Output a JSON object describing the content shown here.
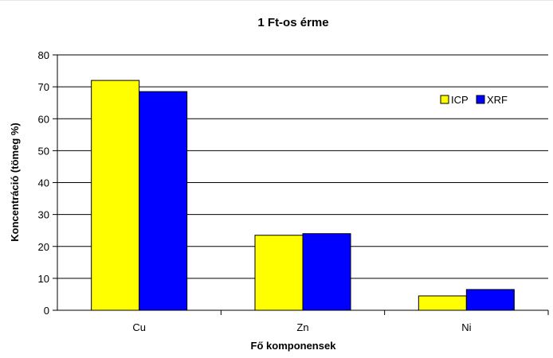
{
  "chart_data": {
    "type": "bar",
    "title": "1 Ft-os érme",
    "xlabel": "Fő komponensek",
    "ylabel": "Koncentráció (tömeg %)",
    "categories": [
      "Cu",
      "Zn",
      "Ni"
    ],
    "series": [
      {
        "name": "ICP",
        "values": [
          72,
          23.5,
          4.5
        ],
        "color": "#ffff00"
      },
      {
        "name": "XRF",
        "values": [
          68.5,
          24,
          6.5
        ],
        "color": "#0000ff"
      }
    ],
    "ylim": [
      0,
      80
    ],
    "yticks": [
      0,
      10,
      20,
      30,
      40,
      50,
      60,
      70,
      80
    ],
    "grid": true,
    "legend": "right, inside plot"
  }
}
